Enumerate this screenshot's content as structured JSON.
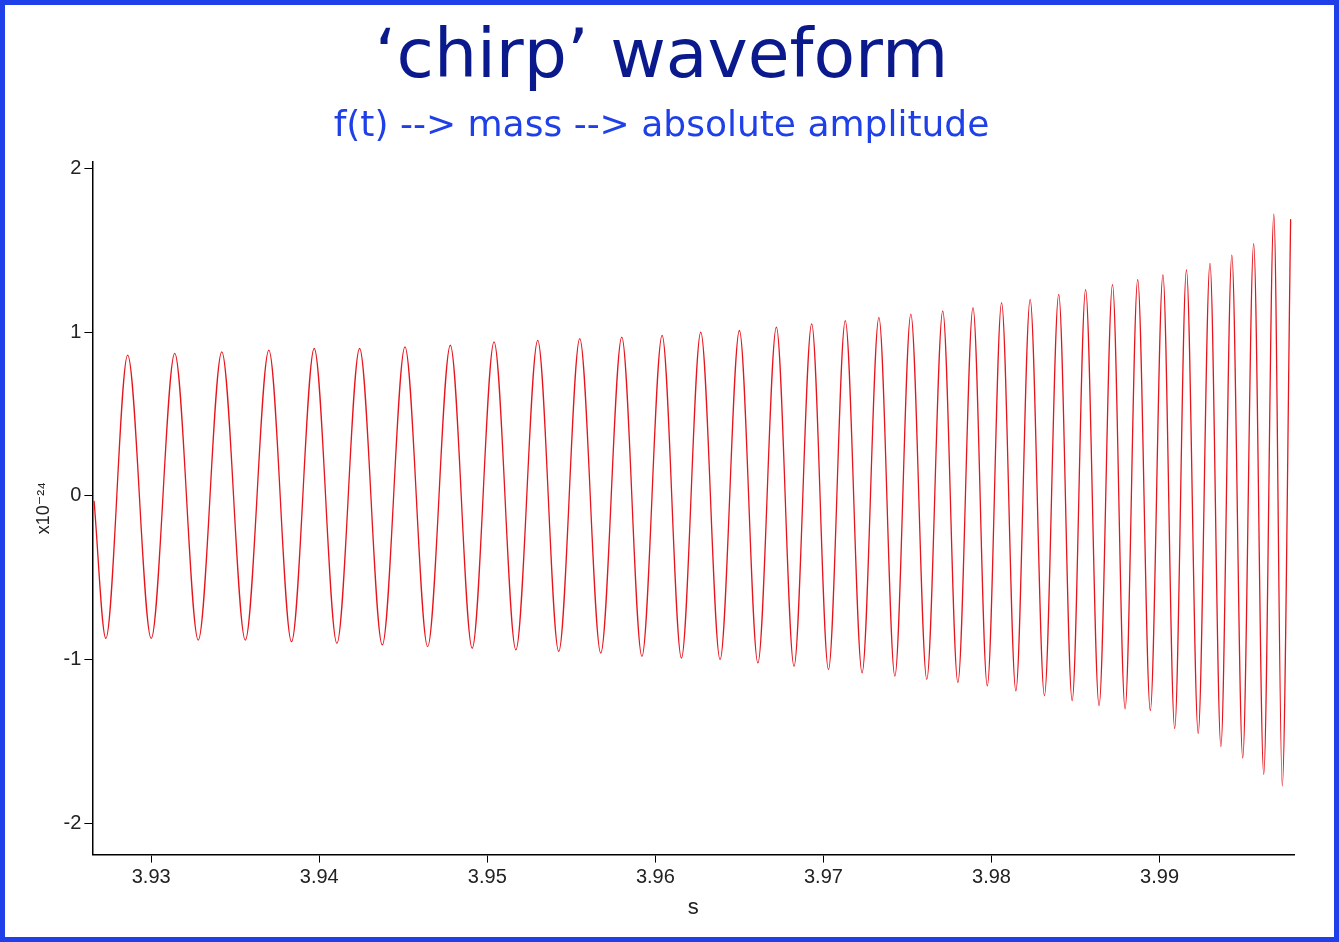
{
  "chart_data": {
    "type": "line",
    "title": "‘chirp’ waveform",
    "subtitle": "f(t) --> mass --> absolute amplitude",
    "x_label": "s",
    "y_label": "x10⁻²⁴",
    "color": "#e8141c",
    "grid": false,
    "xlim": [
      3.9265,
      3.998
    ],
    "ylim": [
      -2.19,
      2.04
    ],
    "xticks": [
      3.93,
      3.94,
      3.95,
      3.96,
      3.97,
      3.98,
      3.99
    ],
    "yticks": [
      -2,
      -1,
      0,
      1,
      2
    ],
    "x": [
      3.9266,
      3.9273,
      3.9286,
      3.93,
      3.9314,
      3.9328,
      3.9342,
      3.9356,
      3.937,
      3.93835,
      3.9397,
      3.94105,
      3.9424,
      3.94375,
      3.9451,
      3.94645,
      3.9478,
      3.9491,
      3.9504,
      3.9517,
      3.953,
      3.95425,
      3.9555,
      3.95675,
      3.958,
      3.9592,
      3.9604,
      3.96155,
      3.9627,
      3.96385,
      3.965,
      3.9661,
      3.9672,
      3.96825,
      3.9693,
      3.9703,
      3.9713,
      3.9723,
      3.9733,
      3.97425,
      3.9752,
      3.97615,
      3.9771,
      3.978,
      3.9789,
      3.97975,
      3.9806,
      3.98145,
      3.9823,
      3.98315,
      3.984,
      3.9848,
      3.9856,
      3.9864,
      3.9872,
      3.98795,
      3.9887,
      3.98945,
      3.9902,
      3.9909,
      3.9916,
      3.9923,
      3.993,
      3.99365,
      3.9943,
      3.99495,
      3.9956,
      3.9962,
      3.9968,
      3.9973,
      3.9978
    ],
    "values": [
      -0.03,
      -0.87,
      0.86,
      -0.87,
      0.87,
      -0.88,
      0.88,
      -0.88,
      0.89,
      -0.89,
      0.9,
      -0.9,
      0.9,
      -0.91,
      0.91,
      -0.92,
      0.92,
      -0.93,
      0.94,
      -0.94,
      0.95,
      -0.95,
      0.96,
      -0.96,
      0.97,
      -0.98,
      0.98,
      -0.99,
      1.0,
      -1.0,
      1.01,
      -1.02,
      1.03,
      -1.04,
      1.05,
      -1.06,
      1.07,
      -1.08,
      1.09,
      -1.1,
      1.11,
      -1.12,
      1.13,
      -1.14,
      1.15,
      -1.16,
      1.18,
      -1.19,
      1.2,
      -1.22,
      1.23,
      -1.25,
      1.26,
      -1.28,
      1.29,
      -1.3,
      1.32,
      -1.31,
      1.35,
      -1.42,
      1.38,
      -1.45,
      1.42,
      -1.53,
      1.47,
      -1.6,
      1.54,
      -1.7,
      1.72,
      -1.77,
      1.69
    ]
  }
}
